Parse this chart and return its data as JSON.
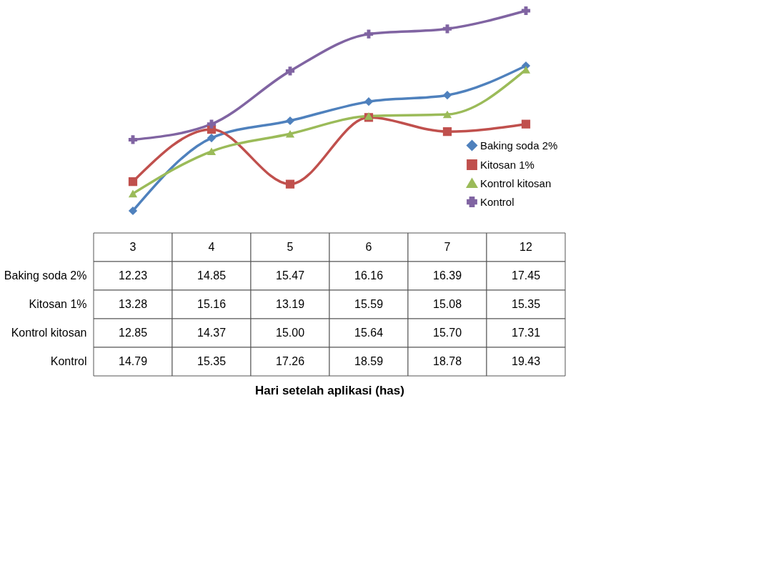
{
  "chart_data": {
    "type": "line",
    "annotations": [
      "Hari setelah aplikasi (has)"
    ],
    "categories": [
      "3",
      "4",
      "5",
      "6",
      "7",
      "12"
    ],
    "legend": "bottom right",
    "grid": false,
    "line_style": "solid",
    "series": [
      {
        "name": "Baking soda 2%",
        "color": "#4f81bd",
        "marker": "diamond",
        "values": [
          12.23,
          14.85,
          15.47,
          16.16,
          16.39,
          17.45
        ],
        "value_labels": [
          "12.23",
          "14.85",
          "15.47",
          "16.16",
          "16.39",
          "17.45"
        ]
      },
      {
        "name": "Kitosan 1%",
        "color": "#c0504d",
        "marker": "square",
        "values": [
          13.28,
          15.16,
          13.19,
          15.59,
          15.08,
          15.35
        ],
        "value_labels": [
          "13.28",
          "15.16",
          "13.19",
          "15.59",
          "15.08",
          "15.35"
        ]
      },
      {
        "name": "Kontrol kitosan",
        "color": "#9bbb59",
        "marker": "triangle",
        "values": [
          12.85,
          14.37,
          15.0,
          15.64,
          15.7,
          17.31
        ],
        "value_labels": [
          "12.85",
          "14.37",
          "15.00",
          "15.64",
          "15.70",
          "17.31"
        ]
      },
      {
        "name": "Kontrol",
        "color": "#8064a2",
        "marker": "cross",
        "values": [
          14.79,
          15.35,
          17.26,
          18.59,
          18.78,
          19.43
        ],
        "value_labels": [
          "14.79",
          "15.35",
          "17.26",
          "18.59",
          "18.78",
          "19.43"
        ]
      }
    ]
  }
}
